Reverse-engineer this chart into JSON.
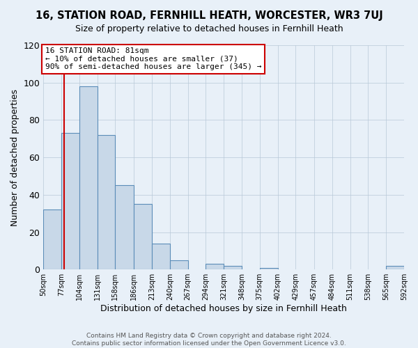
{
  "title": "16, STATION ROAD, FERNHILL HEATH, WORCESTER, WR3 7UJ",
  "subtitle": "Size of property relative to detached houses in Fernhill Heath",
  "xlabel": "Distribution of detached houses by size in Fernhill Heath",
  "ylabel": "Number of detached properties",
  "bin_edges": [
    50,
    77,
    104,
    131,
    158,
    186,
    213,
    240,
    267,
    294,
    321,
    348,
    375,
    402,
    429,
    457,
    484,
    511,
    538,
    565,
    592
  ],
  "bar_heights": [
    32,
    73,
    98,
    72,
    45,
    35,
    14,
    5,
    0,
    3,
    2,
    0,
    1,
    0,
    0,
    0,
    0,
    0,
    0,
    2
  ],
  "bar_color": "#c8d8e8",
  "bar_edge_color": "#5b8db8",
  "background_color": "#e8f0f8",
  "property_size": 81,
  "red_line_color": "#cc0000",
  "annotation_text": "16 STATION ROAD: 81sqm\n← 10% of detached houses are smaller (37)\n90% of semi-detached houses are larger (345) →",
  "annotation_box_color": "#ffffff",
  "annotation_box_edge_color": "#cc0000",
  "ylim": [
    0,
    120
  ],
  "yticks": [
    0,
    20,
    40,
    60,
    80,
    100,
    120
  ],
  "footer_text": "Contains HM Land Registry data © Crown copyright and database right 2024.\nContains public sector information licensed under the Open Government Licence v3.0.",
  "tick_labels": [
    "50sqm",
    "77sqm",
    "104sqm",
    "131sqm",
    "158sqm",
    "186sqm",
    "213sqm",
    "240sqm",
    "267sqm",
    "294sqm",
    "321sqm",
    "348sqm",
    "375sqm",
    "402sqm",
    "429sqm",
    "457sqm",
    "484sqm",
    "511sqm",
    "538sqm",
    "565sqm",
    "592sqm"
  ]
}
